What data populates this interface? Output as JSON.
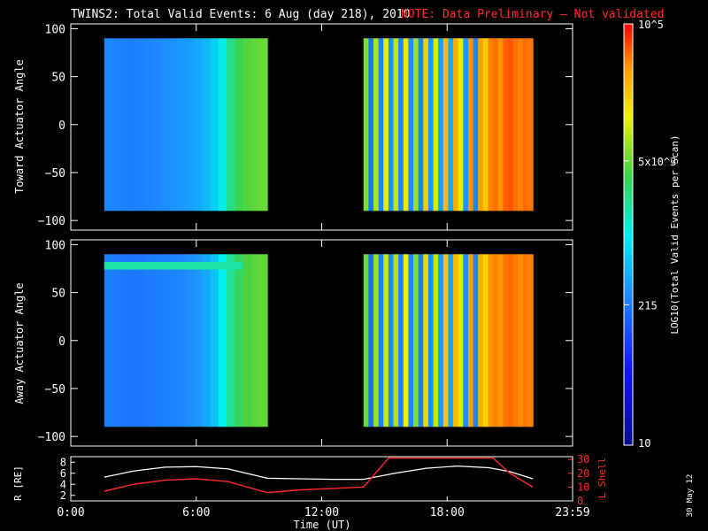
{
  "title": {
    "main": "TWINS2: Total Valid Events:  6 Aug (day 218), 2010",
    "note": "NOTE: Data Preliminary — Not validated"
  },
  "side_stamp": "30 May 12",
  "colorbar": {
    "label": "LOG10(Total Valid Events per Scan)",
    "min_tick": "10",
    "ticks": [
      "215",
      "5x10^3",
      "10^5"
    ],
    "min": 10,
    "max": 100000
  },
  "axes": {
    "x_ticks": [
      "0:00",
      "6:00",
      "12:00",
      "18:00",
      "23:59"
    ],
    "x_label": "Time (UT)",
    "angle_ticks": [
      "100",
      "50",
      "0",
      "−50",
      "−100"
    ],
    "r_ticks": [
      "8",
      "6",
      "4",
      "2"
    ],
    "l_ticks": [
      "30",
      "20",
      "10",
      "0"
    ]
  },
  "chart_data": [
    {
      "type": "heatmap",
      "ylabel": "Toward Actuator Angle",
      "xlim": [
        0,
        24
      ],
      "ylim": [
        -110,
        105
      ],
      "data_y_range": [
        -90,
        90
      ],
      "blocks": [
        {
          "start": 1.6,
          "end": 9.4,
          "values": [
            260,
            250,
            240,
            230,
            240,
            250,
            260,
            280,
            300,
            320,
            350,
            400,
            480,
            650,
            1100,
            2200,
            3400,
            4200,
            4700,
            5000
          ]
        },
        {
          "start": 14.0,
          "end": 22.1,
          "values": [
            6000,
            200,
            8000,
            250,
            12000,
            300,
            9000,
            260,
            15000,
            280,
            7000,
            250,
            20000,
            300,
            11000,
            350,
            25000,
            400,
            30000,
            12000,
            300,
            40000,
            250,
            35000,
            20000,
            45000,
            50000,
            40000,
            55000,
            60000,
            50000,
            45000,
            52000,
            48000
          ]
        }
      ]
    },
    {
      "type": "heatmap",
      "ylabel": "Away Actuator Angle",
      "xlim": [
        0,
        24
      ],
      "ylim": [
        -110,
        105
      ],
      "data_y_range": [
        -90,
        90
      ],
      "blocks": [
        {
          "start": 1.6,
          "end": 9.4,
          "values": [
            230,
            220,
            210,
            200,
            210,
            220,
            230,
            240,
            250,
            260,
            280,
            320,
            400,
            550,
            1000,
            2000,
            3200,
            4000,
            4500,
            4800
          ]
        },
        {
          "start": 14.0,
          "end": 22.1,
          "values": [
            5000,
            180,
            7000,
            230,
            10000,
            260,
            8000,
            240,
            13000,
            260,
            6000,
            230,
            18000,
            280,
            10000,
            320,
            22000,
            380,
            26000,
            11000,
            280,
            35000,
            240,
            30000,
            18000,
            40000,
            45000,
            38000,
            50000,
            52000,
            46000,
            42000,
            48000,
            44000
          ]
        }
      ],
      "band": {
        "y": 78,
        "start": 1.6,
        "end": 8.2,
        "value": 1800
      }
    },
    {
      "type": "line",
      "ylabel": "R [RE]",
      "y2label": "L Shell",
      "xlim": [
        0,
        24
      ],
      "ylim": [
        1,
        9
      ],
      "y2lim": [
        0,
        32
      ],
      "series": [
        {
          "name": "R",
          "x": [
            1.6,
            3,
            4.5,
            6,
            7.5,
            9.4,
            11,
            12.5,
            14,
            15.5,
            17,
            18.5,
            20,
            21,
            22.1
          ],
          "y": [
            5.3,
            6.4,
            7.1,
            7.2,
            6.8,
            5.1,
            5.0,
            4.9,
            4.9,
            6.0,
            6.9,
            7.3,
            7.0,
            6.3,
            5.0
          ]
        },
        {
          "name": "L Shell",
          "x": [
            1.6,
            3,
            4.5,
            6,
            7.5,
            9.4,
            11,
            12.5,
            14,
            15.2,
            20.2,
            21,
            22.1
          ],
          "y": [
            7,
            12,
            15,
            16,
            14,
            6,
            8,
            9,
            10,
            31,
            31,
            20,
            10
          ]
        }
      ]
    }
  ]
}
